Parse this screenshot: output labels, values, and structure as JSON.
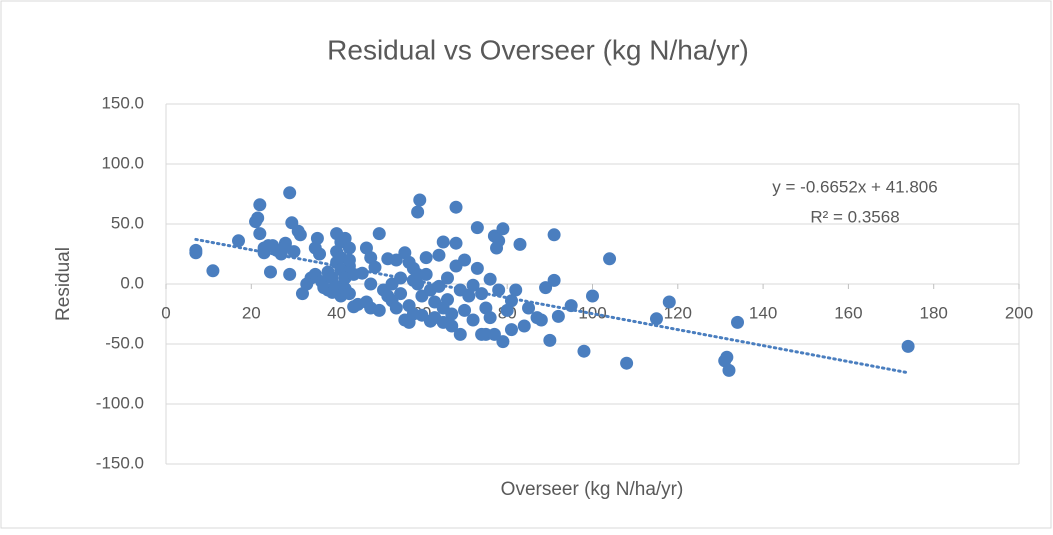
{
  "chart_data": {
    "type": "scatter",
    "title": "Residual vs Overseer (kg N/ha/yr)",
    "xlabel": "Overseer (kg N/ha/yr)",
    "ylabel": "Residual",
    "color": "#4a7ebf",
    "x": [
      7,
      7,
      11,
      17,
      21,
      21.5,
      22,
      22,
      23,
      23,
      24,
      24.5,
      25,
      26,
      27,
      28,
      28,
      29,
      29,
      29.5,
      30,
      31,
      31.5,
      32,
      33,
      34,
      35,
      35,
      35.5,
      36,
      36.5,
      37,
      38,
      38,
      39,
      39,
      40,
      40,
      40,
      40,
      41,
      41,
      41,
      41,
      42,
      42,
      42,
      43,
      43,
      43,
      43,
      44,
      44,
      45,
      46,
      47,
      47,
      48,
      48,
      48,
      49,
      50,
      50,
      51,
      52,
      52,
      53,
      53,
      54,
      54,
      55,
      55,
      56,
      56,
      57,
      57,
      57,
      58,
      58,
      58,
      59,
      59,
      59,
      59.5,
      60,
      60,
      61,
      61,
      62,
      62,
      63,
      63,
      64,
      64,
      65,
      65,
      65,
      66,
      66,
      67,
      67,
      68,
      68,
      68,
      69,
      69,
      70,
      70,
      71,
      72,
      72,
      73,
      73,
      74,
      74,
      75,
      75,
      76,
      76,
      77,
      77,
      77.5,
      78,
      78,
      79,
      79,
      80,
      81,
      81,
      82,
      83,
      84,
      85,
      87,
      88,
      89,
      90,
      91,
      91,
      92,
      95,
      98,
      100,
      104,
      108,
      115,
      118,
      131,
      131.5,
      132,
      134,
      174
    ],
    "values": [
      28,
      26,
      11,
      36,
      52,
      55,
      66,
      42,
      30,
      26,
      32,
      10,
      32,
      28,
      25,
      34,
      31,
      8,
      76,
      51,
      27,
      44,
      41,
      -8,
      0,
      5,
      8,
      30,
      38,
      25,
      2,
      -3,
      10,
      -5,
      5,
      -7,
      27,
      18,
      42,
      -2,
      35,
      12,
      -10,
      22,
      38,
      5,
      -4,
      15,
      20,
      30,
      -8,
      -19,
      8,
      -17,
      9,
      30,
      -15,
      22,
      -20,
      0,
      14,
      42,
      -22,
      -5,
      21,
      -10,
      0,
      -14,
      20,
      -20,
      5,
      -8,
      26,
      -30,
      18,
      -18,
      -32,
      13,
      3,
      -25,
      8,
      0,
      60,
      70,
      -10,
      -26,
      22,
      8,
      -5,
      -31,
      -15,
      -28,
      -2,
      24,
      35,
      -20,
      -32,
      5,
      -13,
      -25,
      -35,
      64,
      34,
      15,
      -42,
      -5,
      20,
      -22,
      -10,
      -1,
      -30,
      13,
      47,
      -42,
      -8,
      -20,
      -42,
      -28,
      4,
      -42,
      40,
      30,
      36,
      -5,
      46,
      -48,
      -22,
      -38,
      -14,
      -5,
      33,
      -35,
      -20,
      -28,
      -30,
      -3,
      -47,
      41,
      3,
      -27,
      -18,
      -56,
      -10,
      21,
      -66,
      -29,
      -15,
      -64,
      -61,
      -72,
      -32,
      -52
    ],
    "trendline": {
      "slope": -0.6652,
      "intercept": 41.806
    },
    "annotations": [
      "y = -0.6652x + 41.806",
      "R² = 0.3568"
    ],
    "xlim": [
      0,
      200
    ],
    "xticks": [
      0,
      20,
      40,
      60,
      80,
      100,
      120,
      140,
      160,
      180,
      200
    ],
    "ylim": [
      -150,
      150
    ],
    "yticks": [
      {
        "value": -150,
        "label": "-150.0"
      },
      {
        "value": -100,
        "label": "-100.0"
      },
      {
        "value": -50,
        "label": "-50.0"
      },
      {
        "value": 0,
        "label": "0.0"
      },
      {
        "value": 50,
        "label": "50.0"
      },
      {
        "value": 100,
        "label": "100.0"
      },
      {
        "value": 150,
        "label": "150.0"
      }
    ],
    "grid": true
  }
}
